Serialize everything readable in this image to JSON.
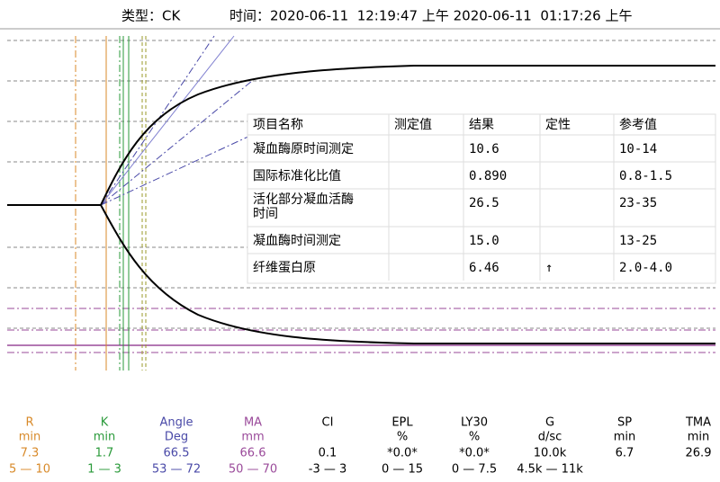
{
  "header": {
    "type_label": "类型：CK",
    "time_label": "时间：2020-06-11  12:19:47 上午 2020-06-11  01:17:26 上午"
  },
  "table": {
    "headers": [
      "项目名称",
      "测定值",
      "结果",
      "定性",
      "参考值"
    ],
    "rows": [
      {
        "name": "凝血酶原时间测定",
        "result": "10.6",
        "reference": "10-14"
      },
      {
        "name": "国际标准化比值",
        "result": "0.890",
        "reference": "0.8-1.5"
      },
      {
        "name": "活化部分凝血活酶\n时间",
        "result": "26.5",
        "reference": "23-35"
      },
      {
        "name": "凝血酶时间测定",
        "result": "15.0",
        "reference": "13-25"
      },
      {
        "name": "纤维蛋白原",
        "result": "6.46",
        "flag": "↑",
        "reference": "2.0-4.0",
        "color": "#ff0000"
      }
    ]
  },
  "params": [
    {
      "name": "R",
      "unit": "min",
      "value": "7.3",
      "range": "5 — 10",
      "color": "#d88a2a"
    },
    {
      "name": "K",
      "unit": "min",
      "value": "1.7",
      "range": "1 — 3",
      "color": "#2a9a3a"
    },
    {
      "name": "Angle",
      "unit": "Deg",
      "value": "66.5",
      "range": "53 — 72",
      "color": "#4a4aa8"
    },
    {
      "name": "MA",
      "unit": "mm",
      "value": "66.6",
      "range": "50 — 70",
      "color": "#9a4a9a"
    },
    {
      "name": "CI",
      "value": "0.1",
      "range": "-3 — 3",
      "color": "#000000"
    },
    {
      "name": "EPL",
      "unit": "%",
      "value": "*0.0*",
      "range": "0 — 15",
      "color": "#000000"
    },
    {
      "name": "LY30",
      "unit": "%",
      "value": "*0.0*",
      "range": "0 — 7.5",
      "color": "#000000"
    },
    {
      "name": "G",
      "unit": "d/sc",
      "value": "10.0k",
      "range": "4.5k — 11k",
      "color": "#000000"
    },
    {
      "name": "SP",
      "unit": "min",
      "value": "6.7",
      "color": "#000000"
    },
    {
      "name": "TMA",
      "unit": "min",
      "value": "26.9",
      "color": "#000000"
    }
  ]
}
